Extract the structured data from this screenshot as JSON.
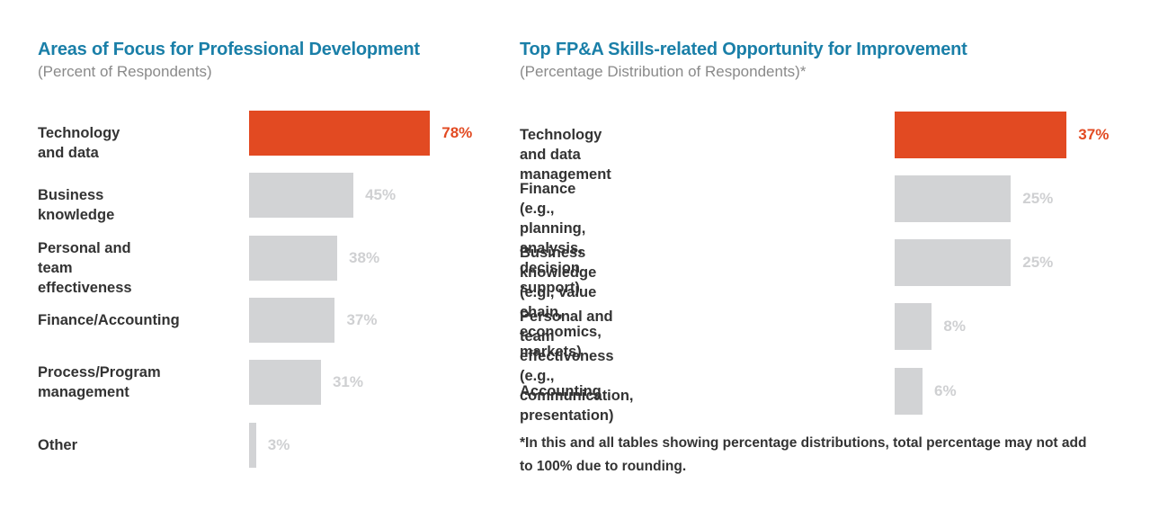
{
  "colors": {
    "highlight": "#e24a22",
    "bar": "#d2d3d5",
    "value_muted": "#cfd0d2",
    "title": "#1a7fa8"
  },
  "chart_data": [
    {
      "type": "bar",
      "orientation": "horizontal",
      "title": "Areas of Focus for Professional Development",
      "subtitle": "(Percent of Respondents)",
      "categories": [
        "Technology and data",
        "Business knowledge",
        "Personal and team\neffectiveness",
        "Finance/Accounting",
        "Process/Program\nmanagement",
        "Other"
      ],
      "values": [
        78,
        45,
        38,
        37,
        31,
        3
      ],
      "value_labels": [
        "78%",
        "45%",
        "38%",
        "37%",
        "31%",
        "3%"
      ],
      "highlight_index": 0,
      "grid": false
    },
    {
      "type": "bar",
      "orientation": "horizontal",
      "title": "Top FP&A Skills-related Opportunity for Improvement",
      "subtitle": "(Percentage Distribution of Respondents)*",
      "categories": [
        "Technology and data management",
        "Finance (e.g., planning, analysis, decision\nsupport)",
        "Business knowledge (e.g., value chain,\neconomics, markets)",
        "Personal and team effectiveness\n(e.g., communication, presentation)",
        "Accounting"
      ],
      "values": [
        37,
        25,
        25,
        8,
        6
      ],
      "value_labels": [
        "37%",
        "25%",
        "25%",
        "8%",
        "6%"
      ],
      "highlight_index": 0,
      "grid": false,
      "footnote": "*In this and all tables showing percentage distributions, total percentage may not add to 100% due to rounding."
    }
  ]
}
